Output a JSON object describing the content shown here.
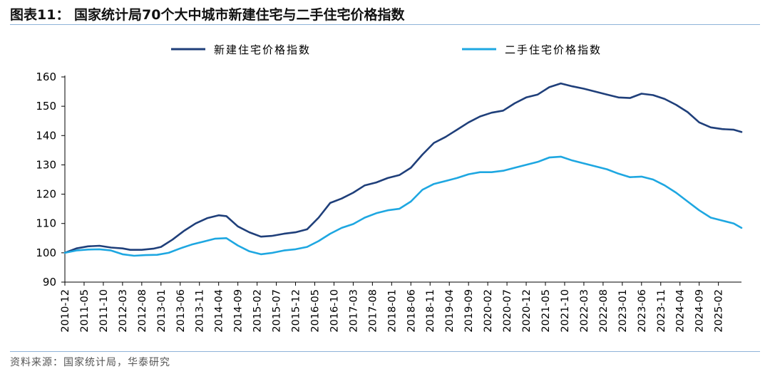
{
  "figure": {
    "title": "图表11：  国家统计局70个大中城市新建住宅与二手住宅价格指数",
    "source": "资料来源：国家统计局，华泰研究"
  },
  "chart_data": {
    "type": "line",
    "ylim": [
      90,
      160
    ],
    "yticks": [
      90,
      100,
      110,
      120,
      130,
      140,
      150,
      160
    ],
    "grid": false,
    "legend_position": "top",
    "xtick_labels": [
      "2010-12",
      "2011-05",
      "2011-10",
      "2012-03",
      "2012-08",
      "2013-01",
      "2013-06",
      "2013-11",
      "2014-04",
      "2014-09",
      "2015-02",
      "2015-07",
      "2015-12",
      "2016-05",
      "2016-10",
      "2017-03",
      "2017-08",
      "2018-01",
      "2018-06",
      "2018-11",
      "2019-04",
      "2019-09",
      "2020-02",
      "2020-07",
      "2020-12",
      "2021-05",
      "2021-10",
      "2022-03",
      "2022-08",
      "2023-01",
      "2023-06",
      "2023-11",
      "2024-04",
      "2024-09",
      "2025-02"
    ],
    "series": [
      {
        "name": "新建住宅价格指数",
        "color": "#1f3f7a",
        "points": [
          [
            "2010-12",
            100
          ],
          [
            "2011-03",
            101.5
          ],
          [
            "2011-06",
            102.2
          ],
          [
            "2011-09",
            102.4
          ],
          [
            "2011-12",
            101.8
          ],
          [
            "2012-03",
            101.5
          ],
          [
            "2012-05",
            101.0
          ],
          [
            "2012-08",
            101.0
          ],
          [
            "2012-11",
            101.4
          ],
          [
            "2013-01",
            102.0
          ],
          [
            "2013-04",
            104.5
          ],
          [
            "2013-07",
            107.5
          ],
          [
            "2013-10",
            110.0
          ],
          [
            "2014-01",
            111.8
          ],
          [
            "2014-04",
            112.8
          ],
          [
            "2014-06",
            112.5
          ],
          [
            "2014-09",
            109.0
          ],
          [
            "2014-12",
            107.0
          ],
          [
            "2015-03",
            105.5
          ],
          [
            "2015-06",
            105.8
          ],
          [
            "2015-09",
            106.5
          ],
          [
            "2015-12",
            107.0
          ],
          [
            "2016-03",
            108.0
          ],
          [
            "2016-06",
            112.0
          ],
          [
            "2016-09",
            117.0
          ],
          [
            "2016-12",
            118.5
          ],
          [
            "2017-03",
            120.5
          ],
          [
            "2017-06",
            123.0
          ],
          [
            "2017-09",
            124.0
          ],
          [
            "2017-12",
            125.5
          ],
          [
            "2018-03",
            126.5
          ],
          [
            "2018-06",
            129.0
          ],
          [
            "2018-09",
            133.5
          ],
          [
            "2018-12",
            137.5
          ],
          [
            "2019-03",
            139.5
          ],
          [
            "2019-06",
            142.0
          ],
          [
            "2019-09",
            144.5
          ],
          [
            "2019-12",
            146.5
          ],
          [
            "2020-03",
            147.8
          ],
          [
            "2020-06",
            148.5
          ],
          [
            "2020-09",
            151.0
          ],
          [
            "2020-12",
            153.0
          ],
          [
            "2021-03",
            154.0
          ],
          [
            "2021-06",
            156.5
          ],
          [
            "2021-09",
            157.8
          ],
          [
            "2021-12",
            156.8
          ],
          [
            "2022-03",
            156.0
          ],
          [
            "2022-06",
            155.0
          ],
          [
            "2022-09",
            154.0
          ],
          [
            "2022-12",
            153.0
          ],
          [
            "2023-03",
            152.8
          ],
          [
            "2023-06",
            154.3
          ],
          [
            "2023-09",
            153.8
          ],
          [
            "2023-12",
            152.5
          ],
          [
            "2024-03",
            150.5
          ],
          [
            "2024-06",
            148.0
          ],
          [
            "2024-09",
            144.5
          ],
          [
            "2024-12",
            142.8
          ],
          [
            "2025-03",
            142.2
          ],
          [
            "2025-06",
            142.0
          ],
          [
            "2025-08",
            141.2
          ]
        ]
      },
      {
        "name": "二手住宅价格指数",
        "color": "#1ea7e1",
        "points": [
          [
            "2010-12",
            100
          ],
          [
            "2011-03",
            100.8
          ],
          [
            "2011-06",
            101.1
          ],
          [
            "2011-09",
            101.2
          ],
          [
            "2011-12",
            100.8
          ],
          [
            "2012-03",
            99.5
          ],
          [
            "2012-06",
            99.0
          ],
          [
            "2012-09",
            99.2
          ],
          [
            "2012-12",
            99.3
          ],
          [
            "2013-03",
            100.0
          ],
          [
            "2013-06",
            101.5
          ],
          [
            "2013-09",
            102.8
          ],
          [
            "2013-12",
            103.8
          ],
          [
            "2014-03",
            104.8
          ],
          [
            "2014-06",
            105.0
          ],
          [
            "2014-09",
            102.5
          ],
          [
            "2014-12",
            100.5
          ],
          [
            "2015-03",
            99.5
          ],
          [
            "2015-06",
            100.0
          ],
          [
            "2015-09",
            100.8
          ],
          [
            "2015-12",
            101.2
          ],
          [
            "2016-03",
            102.0
          ],
          [
            "2016-06",
            104.0
          ],
          [
            "2016-09",
            106.5
          ],
          [
            "2016-12",
            108.5
          ],
          [
            "2017-03",
            109.8
          ],
          [
            "2017-06",
            112.0
          ],
          [
            "2017-09",
            113.5
          ],
          [
            "2017-12",
            114.5
          ],
          [
            "2018-03",
            115.0
          ],
          [
            "2018-06",
            117.5
          ],
          [
            "2018-09",
            121.5
          ],
          [
            "2018-12",
            123.5
          ],
          [
            "2019-03",
            124.5
          ],
          [
            "2019-06",
            125.5
          ],
          [
            "2019-09",
            126.8
          ],
          [
            "2019-12",
            127.5
          ],
          [
            "2020-03",
            127.5
          ],
          [
            "2020-06",
            128.0
          ],
          [
            "2020-09",
            129.0
          ],
          [
            "2020-12",
            130.0
          ],
          [
            "2021-03",
            131.0
          ],
          [
            "2021-06",
            132.5
          ],
          [
            "2021-09",
            132.8
          ],
          [
            "2021-12",
            131.5
          ],
          [
            "2022-03",
            130.5
          ],
          [
            "2022-06",
            129.5
          ],
          [
            "2022-09",
            128.5
          ],
          [
            "2022-12",
            127.0
          ],
          [
            "2023-03",
            125.8
          ],
          [
            "2023-06",
            126.0
          ],
          [
            "2023-09",
            125.0
          ],
          [
            "2023-12",
            123.0
          ],
          [
            "2024-03",
            120.5
          ],
          [
            "2024-06",
            117.5
          ],
          [
            "2024-09",
            114.5
          ],
          [
            "2024-12",
            112.0
          ],
          [
            "2025-03",
            111.0
          ],
          [
            "2025-06",
            110.0
          ],
          [
            "2025-08",
            108.5
          ]
        ]
      }
    ]
  }
}
